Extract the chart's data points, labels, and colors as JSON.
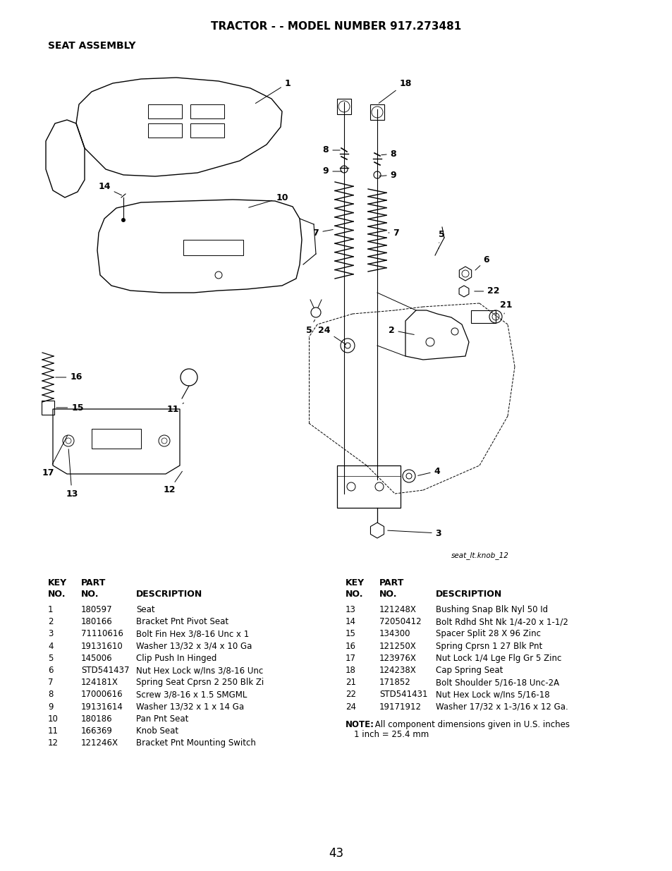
{
  "title": "TRACTOR - - MODEL NUMBER 917.273481",
  "subtitle": "SEAT ASSEMBLY",
  "page_number": "43",
  "image_label": "seat_lt.knob_12",
  "parts_left": [
    [
      "1",
      "180597",
      "Seat"
    ],
    [
      "2",
      "180166",
      "Bracket Pnt Pivot Seat"
    ],
    [
      "3",
      "71110616",
      "Bolt Fin Hex 3/8-16 Unc x 1"
    ],
    [
      "4",
      "19131610",
      "Washer 13/32 x 3/4 x 10 Ga"
    ],
    [
      "5",
      "145006",
      "Clip Push In Hinged"
    ],
    [
      "6",
      "STD541437",
      "Nut Hex Lock w/Ins 3/8-16 Unc"
    ],
    [
      "7",
      "124181X",
      "Spring Seat Cprsn 2 250 Blk Zi"
    ],
    [
      "8",
      "17000616",
      "Screw 3/8-16 x 1.5 SMGML"
    ],
    [
      "9",
      "19131614",
      "Washer 13/32 x 1 x 14 Ga"
    ],
    [
      "10",
      "180186",
      "Pan Pnt Seat"
    ],
    [
      "11",
      "166369",
      "Knob Seat"
    ],
    [
      "12",
      "121246X",
      "Bracket Pnt Mounting Switch"
    ]
  ],
  "parts_right": [
    [
      "13",
      "121248X",
      "Bushing Snap Blk Nyl 50 Id"
    ],
    [
      "14",
      "72050412",
      "Bolt Rdhd Sht Nk 1/4-20 x 1-1/2"
    ],
    [
      "15",
      "134300",
      "Spacer Split 28 X 96 Zinc"
    ],
    [
      "16",
      "121250X",
      "Spring Cprsn 1 27 Blk Pnt"
    ],
    [
      "17",
      "123976X",
      "Nut Lock 1/4 Lge Flg Gr 5 Zinc"
    ],
    [
      "18",
      "124238X",
      "Cap Spring Seat"
    ],
    [
      "21",
      "171852",
      "Bolt Shoulder 5/16-18 Unc-2A"
    ],
    [
      "22",
      "STD541431",
      "Nut Hex Lock w/Ins 5/16-18"
    ],
    [
      "24",
      "19171912",
      "Washer 17/32 x 1-3/16 x 12 Ga."
    ]
  ],
  "note_bold": "NOTE:",
  "note_rest": " All component dimensions given in U.S. inches",
  "note_line2": "1 inch = 25.4 mm",
  "bg_color": "#ffffff",
  "text_color": "#000000"
}
